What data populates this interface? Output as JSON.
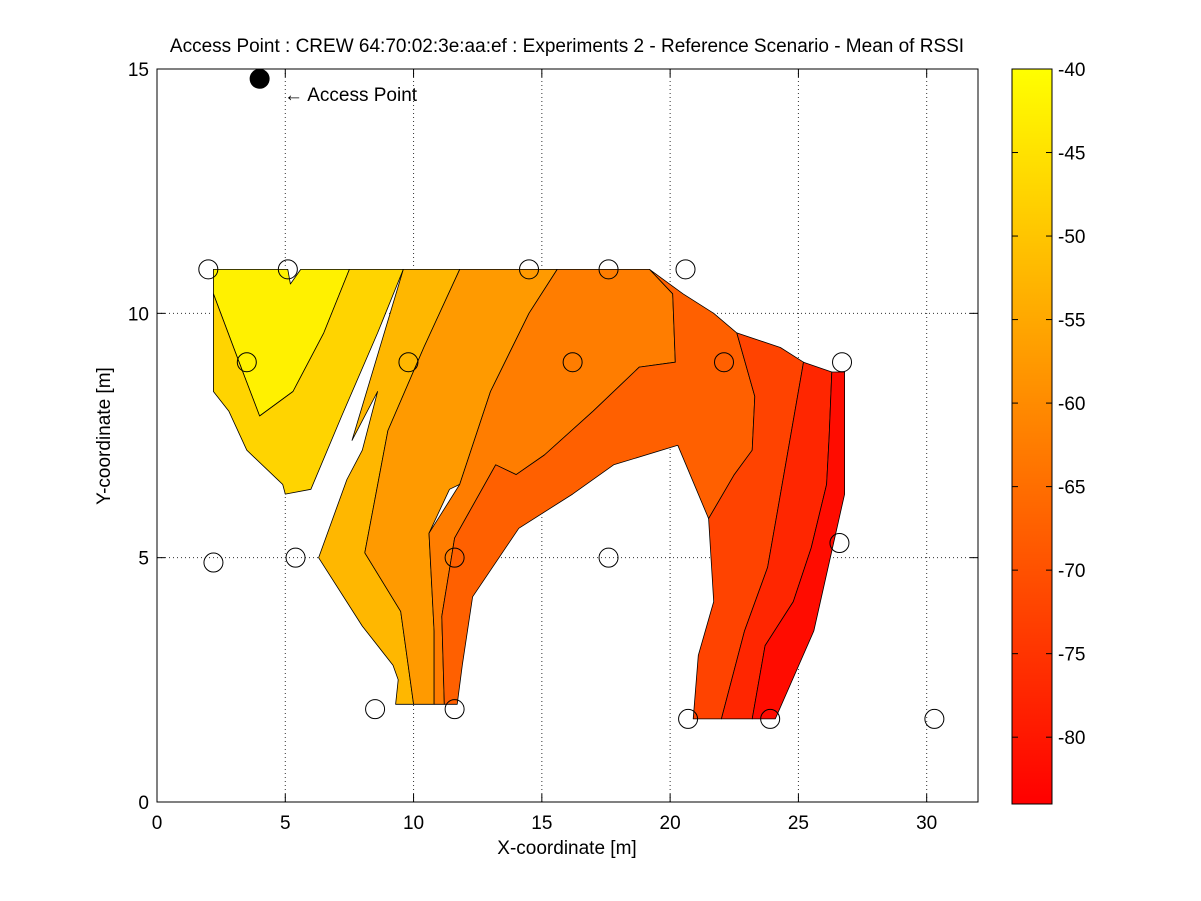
{
  "chart_data": {
    "type": "heatmap",
    "title": "Access Point : CREW 64:70:02:3e:aa:ef : Experiments 2 - Reference Scenario - Mean of RSSI",
    "xlabel": "X-coordinate [m]",
    "ylabel": "Y-coordinate [m]",
    "xlim": [
      0,
      32
    ],
    "ylim": [
      0,
      15
    ],
    "xticks": [
      0,
      5,
      10,
      15,
      20,
      25,
      30
    ],
    "yticks": [
      0,
      5,
      10,
      15
    ],
    "grid": true,
    "colorbar": {
      "range": [
        -84,
        -40
      ],
      "ticks": [
        -40,
        -45,
        -50,
        -55,
        -60,
        -65,
        -70,
        -75,
        -80
      ],
      "colormap": "autumn"
    },
    "access_point": {
      "x": 4.0,
      "y": 14.8,
      "label": "← Access Point"
    },
    "measurement_points": [
      {
        "x": 2.0,
        "y": 10.9
      },
      {
        "x": 5.1,
        "y": 10.9
      },
      {
        "x": 14.5,
        "y": 10.9
      },
      {
        "x": 17.6,
        "y": 10.9
      },
      {
        "x": 20.6,
        "y": 10.9
      },
      {
        "x": 3.5,
        "y": 9.0
      },
      {
        "x": 9.8,
        "y": 9.0
      },
      {
        "x": 16.2,
        "y": 9.0
      },
      {
        "x": 22.1,
        "y": 9.0
      },
      {
        "x": 26.7,
        "y": 9.0
      },
      {
        "x": 2.2,
        "y": 4.9
      },
      {
        "x": 5.4,
        "y": 5.0
      },
      {
        "x": 11.6,
        "y": 5.0
      },
      {
        "x": 17.6,
        "y": 5.0
      },
      {
        "x": 26.6,
        "y": 5.3
      },
      {
        "x": 8.5,
        "y": 1.9
      },
      {
        "x": 11.6,
        "y": 1.9
      },
      {
        "x": 20.7,
        "y": 1.7
      },
      {
        "x": 23.9,
        "y": 1.7
      },
      {
        "x": 30.3,
        "y": 1.7
      }
    ],
    "contour_regions": [
      {
        "level": -42.5,
        "polygon": [
          [
            2.2,
            10.9
          ],
          [
            5.1,
            10.9
          ],
          [
            5.2,
            10.6
          ],
          [
            5.6,
            10.9
          ],
          [
            7.5,
            10.9
          ],
          [
            6.5,
            9.6
          ],
          [
            5.3,
            8.4
          ],
          [
            4.0,
            7.9
          ],
          [
            3.2,
            9.0
          ],
          [
            2.2,
            10.4
          ]
        ]
      },
      {
        "level": -47.5,
        "polygon": [
          [
            7.5,
            10.9
          ],
          [
            9.6,
            10.9
          ],
          [
            8.6,
            9.6
          ],
          [
            7.2,
            7.9
          ],
          [
            6.0,
            6.4
          ],
          [
            5.0,
            6.3
          ],
          [
            4.9,
            6.5
          ],
          [
            3.5,
            7.2
          ],
          [
            2.8,
            8.0
          ],
          [
            2.2,
            8.4
          ],
          [
            2.2,
            10.4
          ],
          [
            3.2,
            9.0
          ],
          [
            4.0,
            7.9
          ],
          [
            5.3,
            8.4
          ],
          [
            6.5,
            9.6
          ]
        ]
      },
      {
        "level": -52.5,
        "polygon": [
          [
            9.6,
            10.9
          ],
          [
            11.8,
            10.9
          ],
          [
            10.4,
            9.3
          ],
          [
            9.0,
            7.6
          ],
          [
            8.1,
            5.1
          ],
          [
            9.5,
            3.9
          ],
          [
            10.0,
            2.0
          ],
          [
            9.3,
            2.0
          ],
          [
            9.4,
            2.5
          ],
          [
            9.2,
            2.8
          ],
          [
            8.0,
            3.6
          ],
          [
            6.3,
            5.0
          ],
          [
            7.4,
            6.6
          ],
          [
            8.0,
            7.2
          ],
          [
            8.6,
            8.4
          ],
          [
            7.6,
            7.4
          ]
        ]
      },
      {
        "level": -57.5,
        "polygon": [
          [
            11.8,
            10.9
          ],
          [
            15.6,
            10.9
          ],
          [
            14.5,
            10.0
          ],
          [
            13.0,
            8.4
          ],
          [
            11.8,
            6.5
          ],
          [
            11.4,
            6.4
          ],
          [
            10.6,
            5.5
          ],
          [
            10.8,
            3.5
          ],
          [
            10.8,
            2.0
          ],
          [
            10.0,
            2.0
          ],
          [
            9.5,
            3.9
          ],
          [
            8.1,
            5.1
          ],
          [
            9.0,
            7.6
          ],
          [
            10.4,
            9.3
          ]
        ]
      },
      {
        "level": -62.5,
        "polygon": [
          [
            15.6,
            10.9
          ],
          [
            19.2,
            10.9
          ],
          [
            20.1,
            10.4
          ],
          [
            20.2,
            9.0
          ],
          [
            18.8,
            8.9
          ],
          [
            17.0,
            8.0
          ],
          [
            15.1,
            7.1
          ],
          [
            14.0,
            6.7
          ],
          [
            13.2,
            6.9
          ],
          [
            11.6,
            5.4
          ],
          [
            11.1,
            3.8
          ],
          [
            11.2,
            2.0
          ],
          [
            10.8,
            2.0
          ],
          [
            10.8,
            3.5
          ],
          [
            10.6,
            5.5
          ],
          [
            11.8,
            6.5
          ],
          [
            13.0,
            8.4
          ],
          [
            14.5,
            10.0
          ]
        ]
      },
      {
        "level": -67.5,
        "polygon": [
          [
            19.2,
            10.9
          ],
          [
            20.5,
            10.4
          ],
          [
            21.7,
            10.0
          ],
          [
            22.6,
            9.6
          ],
          [
            23.3,
            8.3
          ],
          [
            23.2,
            7.2
          ],
          [
            22.5,
            6.7
          ],
          [
            21.5,
            5.8
          ],
          [
            20.3,
            7.3
          ],
          [
            17.8,
            6.9
          ],
          [
            16.2,
            6.3
          ],
          [
            14.1,
            5.6
          ],
          [
            12.3,
            4.2
          ],
          [
            11.9,
            2.8
          ],
          [
            11.7,
            2.0
          ],
          [
            11.2,
            2.0
          ],
          [
            11.1,
            3.8
          ],
          [
            11.6,
            5.4
          ],
          [
            13.2,
            6.9
          ],
          [
            14.0,
            6.7
          ],
          [
            15.1,
            7.1
          ],
          [
            17.0,
            8.0
          ],
          [
            18.8,
            8.9
          ],
          [
            20.2,
            9.0
          ],
          [
            20.1,
            10.4
          ]
        ]
      },
      {
        "level": -72.5,
        "polygon": [
          [
            22.6,
            9.6
          ],
          [
            24.3,
            9.3
          ],
          [
            25.2,
            9.0
          ],
          [
            24.7,
            7.5
          ],
          [
            24.2,
            6.0
          ],
          [
            23.8,
            4.8
          ],
          [
            22.9,
            3.5
          ],
          [
            22.0,
            1.7
          ],
          [
            20.9,
            1.7
          ],
          [
            21.1,
            3.0
          ],
          [
            21.7,
            4.1
          ],
          [
            21.5,
            5.8
          ],
          [
            22.5,
            6.7
          ],
          [
            23.2,
            7.2
          ],
          [
            23.3,
            8.3
          ]
        ]
      },
      {
        "level": -77.5,
        "polygon": [
          [
            25.2,
            9.0
          ],
          [
            26.3,
            8.8
          ],
          [
            26.2,
            7.5
          ],
          [
            26.1,
            6.5
          ],
          [
            25.5,
            5.2
          ],
          [
            24.8,
            4.1
          ],
          [
            23.7,
            3.2
          ],
          [
            23.2,
            1.7
          ],
          [
            22.0,
            1.7
          ],
          [
            22.9,
            3.5
          ],
          [
            23.8,
            4.8
          ],
          [
            24.2,
            6.0
          ],
          [
            24.7,
            7.5
          ]
        ]
      },
      {
        "level": -82.0,
        "polygon": [
          [
            26.3,
            8.8
          ],
          [
            26.8,
            8.8
          ],
          [
            26.8,
            6.3
          ],
          [
            25.6,
            3.5
          ],
          [
            24.1,
            1.7
          ],
          [
            23.2,
            1.7
          ],
          [
            23.7,
            3.2
          ],
          [
            24.8,
            4.1
          ],
          [
            25.5,
            5.2
          ],
          [
            26.1,
            6.5
          ],
          [
            26.2,
            7.5
          ]
        ]
      }
    ]
  }
}
